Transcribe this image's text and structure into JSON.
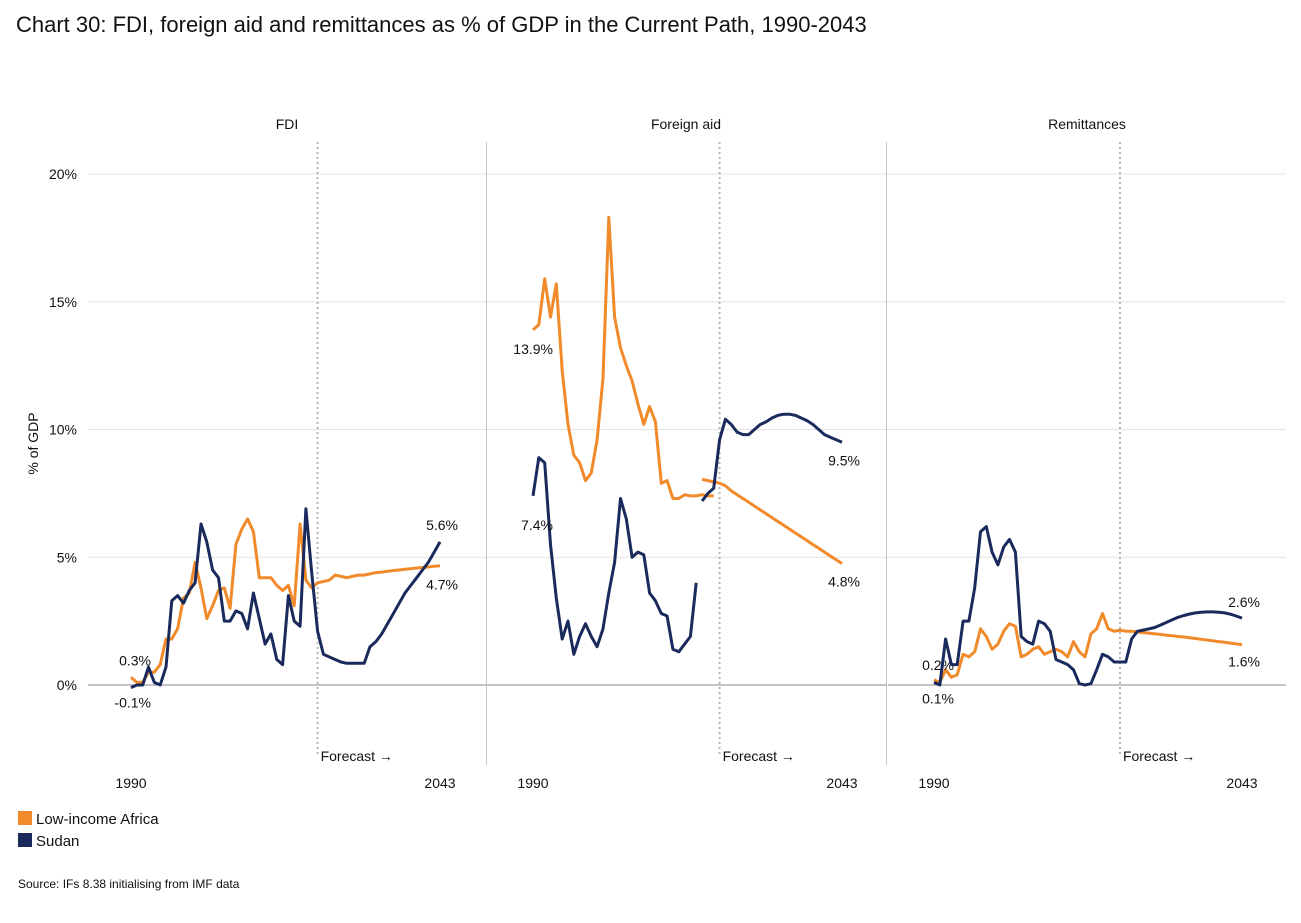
{
  "title": "Chart 30: FDI, foreign aid and remittances as % of GDP in the Current Path, 1990-2043",
  "source": "Source: IFs 8.38 initialising from IMF data",
  "colors": {
    "low_income_africa": "#F18A2A",
    "sudan": "#1B2A5C",
    "grid": "#e3e3e3",
    "divider": "#c6c6c6",
    "zero_line": "#8a8a8a",
    "forecast_line": "#b5b5b5"
  },
  "legend": [
    {
      "label": "Low-income Africa",
      "color": "#F18A2A"
    },
    {
      "label": "Sudan",
      "color": "#1B2A5C"
    }
  ],
  "chart_data": {
    "type": "line",
    "ylabel": "% of GDP",
    "ylim": [
      -3,
      20
    ],
    "yticks": [
      0,
      5,
      10,
      15,
      20
    ],
    "ytick_labels": [
      "0%",
      "5%",
      "10%",
      "15%",
      "20%"
    ],
    "xlim": [
      1990,
      2043
    ],
    "xtick_labels": [
      "1990",
      "2043"
    ],
    "forecast_start": 2022,
    "forecast_label": "Forecast →",
    "panels": [
      {
        "name": "FDI",
        "series": [
          {
            "name": "Low-income Africa",
            "color": "#F18A2A",
            "segments": [
              {
                "x": [
                  1990,
                  1991,
                  1992,
                  1993,
                  1994,
                  1995,
                  1996,
                  1997,
                  1998,
                  1999,
                  2000,
                  2001,
                  2002,
                  2003,
                  2004,
                  2005,
                  2006,
                  2007,
                  2008,
                  2009,
                  2010,
                  2011,
                  2012,
                  2013,
                  2014,
                  2015,
                  2016,
                  2017,
                  2018,
                  2019,
                  2020,
                  2021,
                  2022,
                  2023,
                  2024,
                  2025,
                  2026,
                  2027,
                  2028,
                  2029,
                  2030,
                  2031,
                  2032,
                  2033,
                  2034,
                  2035,
                  2036,
                  2037,
                  2038,
                  2039,
                  2040,
                  2041,
                  2042,
                  2043
                ],
                "y": [
                  0.3,
                  0.1,
                  0.1,
                  0.5,
                  0.5,
                  0.8,
                  1.8,
                  1.8,
                  2.2,
                  3.4,
                  3.6,
                  4.8,
                  3.8,
                  2.6,
                  3.1,
                  3.7,
                  3.8,
                  3.0,
                  5.5,
                  6.1,
                  6.5,
                  6.0,
                  4.2,
                  4.2,
                  4.2,
                  3.9,
                  3.7,
                  3.9,
                  3.1,
                  6.3,
                  4.1,
                  3.8,
                  4.0,
                  4.05,
                  4.1,
                  4.3,
                  4.25,
                  4.2,
                  4.25,
                  4.3,
                  4.3,
                  4.35,
                  4.4,
                  4.42,
                  4.45,
                  4.48,
                  4.5,
                  4.53,
                  4.55,
                  4.58,
                  4.6,
                  4.62,
                  4.65,
                  4.67
                ]
              }
            ],
            "end_label": "4.7%",
            "start_label": "0.3%"
          },
          {
            "name": "Sudan",
            "color": "#1B2A5C",
            "segments": [
              {
                "x": [
                  1990,
                  1991,
                  1992,
                  1993,
                  1994,
                  1995,
                  1996,
                  1997,
                  1998,
                  1999,
                  2000,
                  2001,
                  2002,
                  2003,
                  2004,
                  2005,
                  2006,
                  2007,
                  2008,
                  2009,
                  2010,
                  2011,
                  2012,
                  2013,
                  2014,
                  2015,
                  2016,
                  2017,
                  2018,
                  2019,
                  2020,
                  2021,
                  2022,
                  2023,
                  2024,
                  2025,
                  2026,
                  2027,
                  2028,
                  2029,
                  2030,
                  2031,
                  2032,
                  2033,
                  2034,
                  2035,
                  2036,
                  2037,
                  2038,
                  2039,
                  2040,
                  2041,
                  2042,
                  2043
                ],
                "y": [
                  -0.1,
                  0.0,
                  0.0,
                  0.7,
                  0.1,
                  0.0,
                  0.7,
                  3.3,
                  3.5,
                  3.2,
                  3.7,
                  4.0,
                  6.3,
                  5.6,
                  4.5,
                  4.2,
                  2.5,
                  2.5,
                  2.9,
                  2.8,
                  2.2,
                  3.6,
                  2.6,
                  1.6,
                  2.0,
                  1.0,
                  0.8,
                  3.5,
                  2.5,
                  2.3,
                  6.9,
                  4.4,
                  2.1,
                  1.2,
                  1.1,
                  1.0,
                  0.9,
                  0.85,
                  0.85,
                  0.85,
                  0.85,
                  1.5,
                  1.7,
                  2.0,
                  2.4,
                  2.8,
                  3.2,
                  3.6,
                  3.9,
                  4.2,
                  4.5,
                  4.8,
                  5.2,
                  5.6
                ]
              }
            ],
            "end_label": "5.6%",
            "start_label": "-0.1%"
          }
        ]
      },
      {
        "name": "Foreign aid",
        "series": [
          {
            "name": "Low-income Africa",
            "color": "#F18A2A",
            "segments": [
              {
                "x": [
                  1990,
                  1991,
                  1992,
                  1993,
                  1994,
                  1995,
                  1996,
                  1997,
                  1998,
                  1999,
                  2000,
                  2001,
                  2002,
                  2003,
                  2004,
                  2005,
                  2006,
                  2007,
                  2008,
                  2009,
                  2010,
                  2011,
                  2012,
                  2013,
                  2014,
                  2015,
                  2016,
                  2017,
                  2018,
                  2019,
                  2020,
                  2021
                ],
                "y": [
                  13.9,
                  14.1,
                  15.9,
                  14.4,
                  15.7,
                  12.3,
                  10.2,
                  9.0,
                  8.7,
                  8.0,
                  8.3,
                  9.6,
                  12.0,
                  18.3,
                  14.4,
                  13.2,
                  12.5,
                  11.9,
                  11.0,
                  10.2,
                  10.9,
                  10.3,
                  7.9,
                  8.0,
                  7.3,
                  7.3,
                  7.45,
                  7.4,
                  7.4,
                  7.45,
                  7.4,
                  7.4
                ]
              },
              {
                "x": [
                  2019,
                  2020,
                  2021,
                  2022,
                  2023,
                  2024,
                  2025,
                  2026,
                  2027,
                  2028,
                  2029,
                  2030,
                  2031,
                  2032,
                  2033,
                  2034,
                  2035,
                  2036,
                  2037,
                  2038,
                  2039,
                  2040,
                  2041,
                  2042,
                  2043
                ],
                "y": [
                  8.05,
                  8.0,
                  7.95,
                  7.9,
                  7.8,
                  7.6,
                  7.45,
                  7.3,
                  7.15,
                  7.0,
                  6.85,
                  6.7,
                  6.55,
                  6.4,
                  6.25,
                  6.1,
                  5.95,
                  5.8,
                  5.65,
                  5.5,
                  5.35,
                  5.2,
                  5.05,
                  4.9,
                  4.75
                ]
              }
            ],
            "end_label": "4.8%",
            "start_label": "13.9%"
          },
          {
            "name": "Sudan",
            "color": "#1B2A5C",
            "segments": [
              {
                "x": [
                  1990,
                  1991,
                  1992,
                  1993,
                  1994,
                  1995,
                  1996,
                  1997,
                  1998,
                  1999,
                  2000,
                  2001,
                  2002,
                  2003,
                  2004,
                  2005,
                  2006,
                  2007,
                  2008,
                  2009,
                  2010,
                  2011,
                  2012,
                  2013,
                  2014,
                  2015,
                  2016,
                  2017,
                  2018
                ],
                "y": [
                  7.4,
                  8.9,
                  8.7,
                  5.5,
                  3.4,
                  1.8,
                  2.5,
                  1.2,
                  1.9,
                  2.4,
                  1.9,
                  1.5,
                  2.2,
                  3.6,
                  4.8,
                  7.3,
                  6.5,
                  5.0,
                  5.2,
                  5.1,
                  3.6,
                  3.3,
                  2.8,
                  2.7,
                  1.4,
                  1.3,
                  1.6,
                  1.9,
                  4.0
                ]
              },
              {
                "x": [
                  2019,
                  2020,
                  2021,
                  2022,
                  2023,
                  2024,
                  2025,
                  2026,
                  2027,
                  2028,
                  2029,
                  2030,
                  2031,
                  2032,
                  2033,
                  2034,
                  2035,
                  2036,
                  2037,
                  2038,
                  2039,
                  2040,
                  2041,
                  2042,
                  2043
                ],
                "y": [
                  7.2,
                  7.5,
                  7.7,
                  9.6,
                  10.4,
                  10.2,
                  9.9,
                  9.8,
                  9.8,
                  10.0,
                  10.2,
                  10.3,
                  10.45,
                  10.55,
                  10.6,
                  10.6,
                  10.55,
                  10.45,
                  10.35,
                  10.2,
                  10.0,
                  9.8,
                  9.7,
                  9.6,
                  9.5
                ]
              }
            ],
            "end_label": "9.5%",
            "start_label": "7.4%"
          }
        ]
      },
      {
        "name": "Remittances",
        "series": [
          {
            "name": "Low-income Africa",
            "color": "#F18A2A",
            "segments": [
              {
                "x": [
                  1990,
                  1991,
                  1992,
                  1993,
                  1994,
                  1995,
                  1996,
                  1997,
                  1998,
                  1999,
                  2000,
                  2001,
                  2002,
                  2003,
                  2004,
                  2005,
                  2006,
                  2007,
                  2008,
                  2009,
                  2010,
                  2011,
                  2012,
                  2013,
                  2014,
                  2015,
                  2016,
                  2017,
                  2018,
                  2019,
                  2020,
                  2021,
                  2022,
                  2023,
                  2024,
                  2025,
                  2026,
                  2027,
                  2028,
                  2029,
                  2030,
                  2031,
                  2032,
                  2033,
                  2034,
                  2035,
                  2036,
                  2037,
                  2038,
                  2039,
                  2040,
                  2041,
                  2042,
                  2043
                ],
                "y": [
                  0.2,
                  0.1,
                  0.6,
                  0.3,
                  0.4,
                  1.2,
                  1.1,
                  1.3,
                  2.2,
                  1.9,
                  1.4,
                  1.6,
                  2.1,
                  2.4,
                  2.3,
                  1.1,
                  1.2,
                  1.4,
                  1.5,
                  1.2,
                  1.3,
                  1.4,
                  1.3,
                  1.1,
                  1.7,
                  1.3,
                  1.1,
                  2.0,
                  2.2,
                  2.8,
                  2.2,
                  2.1,
                  2.15,
                  2.1,
                  2.1,
                  2.08,
                  2.05,
                  2.03,
                  2.0,
                  1.98,
                  1.95,
                  1.93,
                  1.9,
                  1.88,
                  1.85,
                  1.82,
                  1.79,
                  1.76,
                  1.73,
                  1.7,
                  1.67,
                  1.64,
                  1.61,
                  1.58
                ]
              }
            ],
            "end_label": "1.6%",
            "start_label": "0.2%"
          },
          {
            "name": "Sudan",
            "color": "#1B2A5C",
            "segments": [
              {
                "x": [
                  1990,
                  1991,
                  1992,
                  1993,
                  1994,
                  1995,
                  1996,
                  1997,
                  1998,
                  1999,
                  2000,
                  2001,
                  2002,
                  2003,
                  2004,
                  2005,
                  2006,
                  2007,
                  2008,
                  2009,
                  2010,
                  2011,
                  2012,
                  2013,
                  2014,
                  2015,
                  2016,
                  2017,
                  2018,
                  2019,
                  2020,
                  2021,
                  2022,
                  2023,
                  2024,
                  2025,
                  2026,
                  2027,
                  2028,
                  2029,
                  2030,
                  2031,
                  2032,
                  2033,
                  2034,
                  2035,
                  2036,
                  2037,
                  2038,
                  2039,
                  2040,
                  2041,
                  2042,
                  2043
                ],
                "y": [
                  0.1,
                  0.0,
                  1.8,
                  0.8,
                  0.8,
                  2.5,
                  2.5,
                  3.8,
                  6.0,
                  6.2,
                  5.2,
                  4.7,
                  5.4,
                  5.7,
                  5.2,
                  1.9,
                  1.7,
                  1.6,
                  2.5,
                  2.4,
                  2.1,
                  1.0,
                  0.9,
                  0.8,
                  0.6,
                  0.05,
                  0.0,
                  0.05,
                  0.6,
                  1.2,
                  1.1,
                  0.9,
                  0.9,
                  0.9,
                  1.8,
                  2.1,
                  2.15,
                  2.2,
                  2.25,
                  2.35,
                  2.45,
                  2.55,
                  2.65,
                  2.72,
                  2.78,
                  2.82,
                  2.85,
                  2.86,
                  2.86,
                  2.85,
                  2.82,
                  2.77,
                  2.7,
                  2.62
                ]
              }
            ],
            "end_label": "2.6%",
            "start_label": "0.1%"
          }
        ]
      }
    ]
  }
}
